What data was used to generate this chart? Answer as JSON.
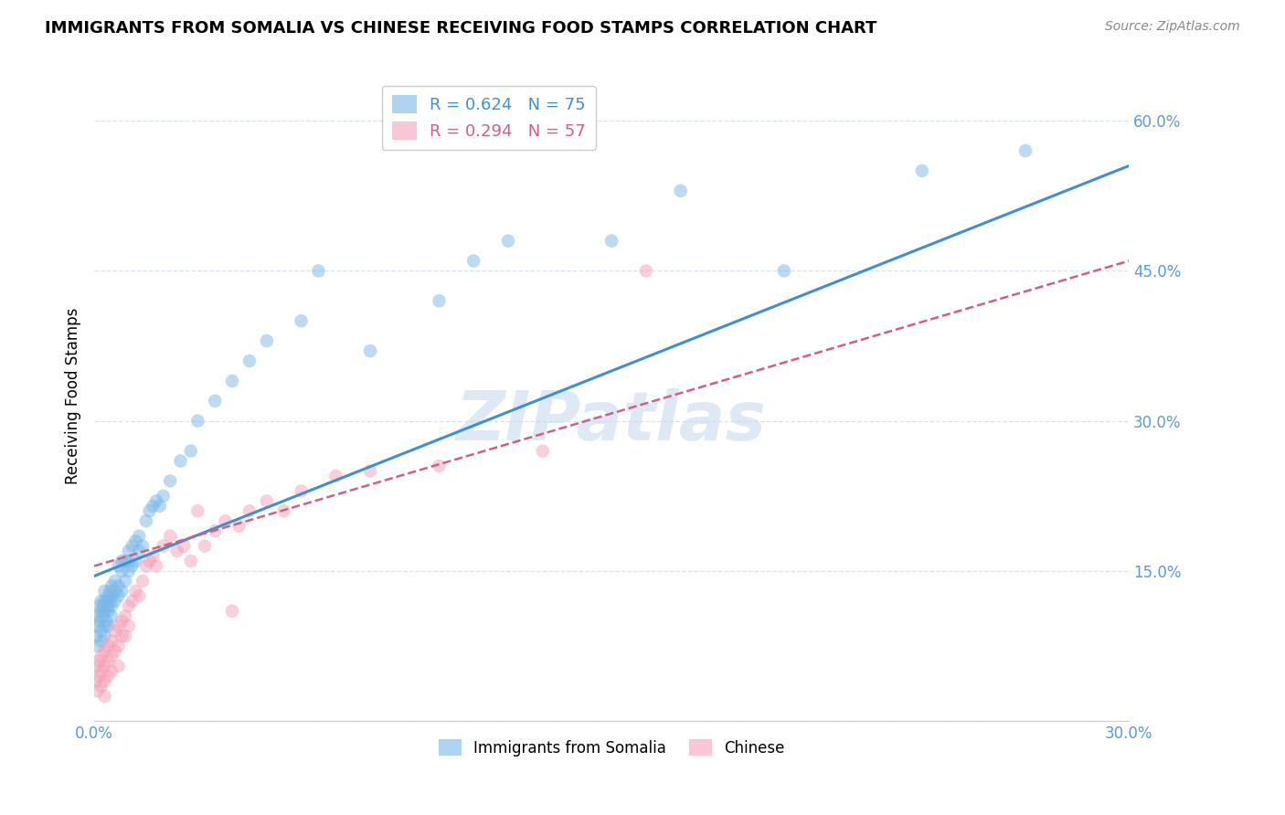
{
  "title": "IMMIGRANTS FROM SOMALIA VS CHINESE RECEIVING FOOD STAMPS CORRELATION CHART",
  "source": "Source: ZipAtlas.com",
  "ylabel": "Receiving Food Stamps",
  "xlabel_somalia": "Immigrants from Somalia",
  "xlabel_chinese": "Chinese",
  "xlim": [
    0.0,
    0.3
  ],
  "ylim": [
    0.0,
    0.65
  ],
  "yticks": [
    0.0,
    0.15,
    0.3,
    0.45,
    0.6
  ],
  "ytick_labels": [
    "",
    "15.0%",
    "30.0%",
    "45.0%",
    "60.0%"
  ],
  "xticks": [
    0.0,
    0.05,
    0.1,
    0.15,
    0.2,
    0.25,
    0.3
  ],
  "xtick_labels": [
    "0.0%",
    "",
    "",
    "",
    "",
    "",
    "30.0%"
  ],
  "somalia_R": 0.624,
  "somalia_N": 75,
  "chinese_R": 0.294,
  "chinese_N": 57,
  "somalia_color": "#7ab8e8",
  "chinese_color": "#f4a0b8",
  "somalia_line_color": "#4090d0",
  "chinese_line_color": "#d06080",
  "axis_color": "#5b9bd5",
  "grid_color": "#d8e4f0",
  "watermark": "ZIPatlas",
  "somalia_line_x0": 0.0,
  "somalia_line_y0": 0.145,
  "somalia_line_x1": 0.3,
  "somalia_line_y1": 0.555,
  "chinese_line_x0": 0.0,
  "chinese_line_y0": 0.155,
  "chinese_line_x1": 0.3,
  "chinese_line_y1": 0.46,
  "somalia_x": [
    0.0005,
    0.001,
    0.001,
    0.001,
    0.0015,
    0.0015,
    0.002,
    0.002,
    0.002,
    0.002,
    0.0025,
    0.0025,
    0.003,
    0.003,
    0.003,
    0.003,
    0.003,
    0.0035,
    0.0035,
    0.004,
    0.004,
    0.004,
    0.004,
    0.0045,
    0.0045,
    0.005,
    0.005,
    0.005,
    0.005,
    0.006,
    0.006,
    0.006,
    0.007,
    0.007,
    0.007,
    0.008,
    0.008,
    0.008,
    0.009,
    0.009,
    0.01,
    0.01,
    0.01,
    0.011,
    0.011,
    0.012,
    0.012,
    0.013,
    0.013,
    0.014,
    0.015,
    0.016,
    0.017,
    0.018,
    0.019,
    0.02,
    0.022,
    0.025,
    0.028,
    0.03,
    0.035,
    0.04,
    0.045,
    0.05,
    0.06,
    0.065,
    0.08,
    0.1,
    0.11,
    0.12,
    0.15,
    0.17,
    0.2,
    0.24,
    0.27
  ],
  "somalia_y": [
    0.085,
    0.095,
    0.105,
    0.075,
    0.1,
    0.115,
    0.09,
    0.11,
    0.12,
    0.08,
    0.105,
    0.115,
    0.095,
    0.11,
    0.12,
    0.13,
    0.085,
    0.1,
    0.12,
    0.11,
    0.115,
    0.125,
    0.095,
    0.12,
    0.13,
    0.105,
    0.115,
    0.125,
    0.135,
    0.12,
    0.13,
    0.14,
    0.125,
    0.135,
    0.155,
    0.13,
    0.15,
    0.16,
    0.14,
    0.16,
    0.15,
    0.16,
    0.17,
    0.155,
    0.175,
    0.16,
    0.18,
    0.17,
    0.185,
    0.175,
    0.2,
    0.21,
    0.215,
    0.22,
    0.215,
    0.225,
    0.24,
    0.26,
    0.27,
    0.3,
    0.32,
    0.34,
    0.36,
    0.38,
    0.4,
    0.45,
    0.37,
    0.42,
    0.46,
    0.48,
    0.48,
    0.53,
    0.45,
    0.55,
    0.57
  ],
  "chinese_x": [
    0.0005,
    0.001,
    0.001,
    0.0015,
    0.0015,
    0.002,
    0.002,
    0.002,
    0.003,
    0.003,
    0.003,
    0.003,
    0.004,
    0.004,
    0.004,
    0.005,
    0.005,
    0.005,
    0.006,
    0.006,
    0.007,
    0.007,
    0.007,
    0.008,
    0.008,
    0.009,
    0.009,
    0.01,
    0.01,
    0.011,
    0.012,
    0.013,
    0.014,
    0.015,
    0.016,
    0.017,
    0.018,
    0.02,
    0.022,
    0.024,
    0.026,
    0.028,
    0.03,
    0.032,
    0.035,
    0.038,
    0.04,
    0.042,
    0.045,
    0.05,
    0.055,
    0.06,
    0.07,
    0.08,
    0.1,
    0.13,
    0.16
  ],
  "chinese_y": [
    0.04,
    0.055,
    0.03,
    0.06,
    0.045,
    0.065,
    0.05,
    0.035,
    0.07,
    0.055,
    0.04,
    0.025,
    0.075,
    0.06,
    0.045,
    0.08,
    0.065,
    0.05,
    0.09,
    0.07,
    0.095,
    0.075,
    0.055,
    0.1,
    0.085,
    0.105,
    0.085,
    0.115,
    0.095,
    0.12,
    0.13,
    0.125,
    0.14,
    0.155,
    0.16,
    0.165,
    0.155,
    0.175,
    0.185,
    0.17,
    0.175,
    0.16,
    0.21,
    0.175,
    0.19,
    0.2,
    0.11,
    0.195,
    0.21,
    0.22,
    0.21,
    0.23,
    0.245,
    0.25,
    0.255,
    0.27,
    0.45
  ]
}
